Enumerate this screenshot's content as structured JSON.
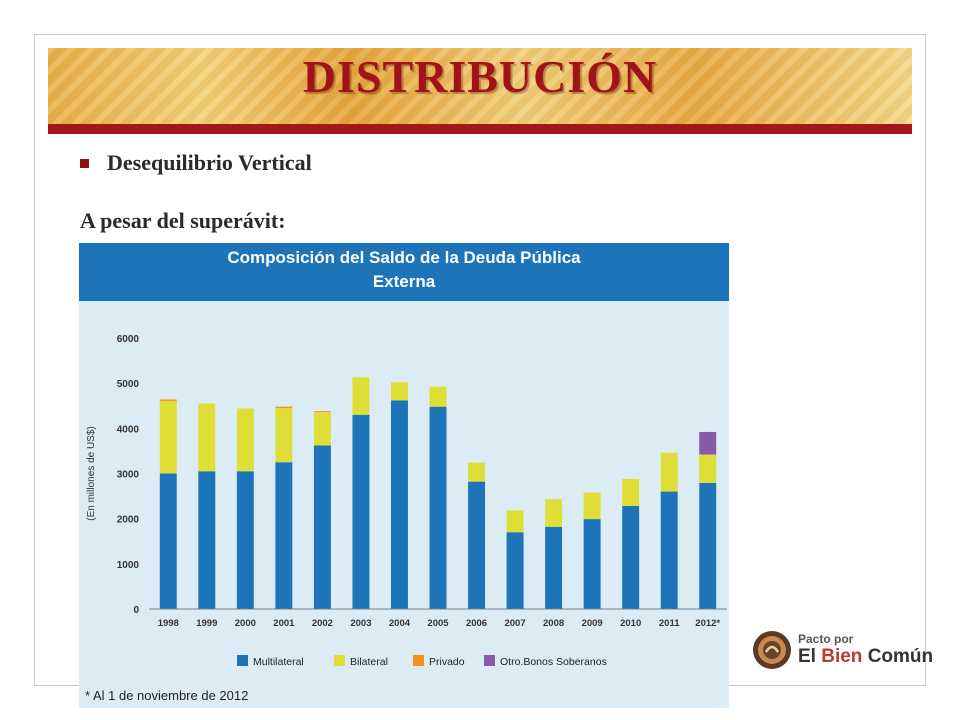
{
  "slide": {
    "title": "DISTRIBUCIÓN",
    "bullet": "Desequilibrio Vertical",
    "subline": "A pesar del superávit:"
  },
  "logo": {
    "line1": "Pacto por",
    "line2_a": "El ",
    "line2_b": "Bien",
    "line2_c": " Común"
  },
  "colors": {
    "title_red": "#a01318",
    "multilateral": "#1d74b9",
    "bilateral": "#dede36",
    "privado": "#f4911e",
    "otros": "#8a5aa8"
  },
  "chart_data": {
    "type": "bar",
    "stacked": true,
    "title": "Composición del Saldo de la Deuda Pública",
    "subtitle": "Externa",
    "ylabel": "(En millones de US$)",
    "xlabel": "",
    "ylim": [
      0,
      6000
    ],
    "yticks": [
      0,
      1000,
      2000,
      3000,
      4000,
      5000,
      6000
    ],
    "grid": false,
    "legend": "bottom",
    "categories": [
      "1998",
      "1999",
      "2000",
      "2001",
      "2002",
      "2003",
      "2004",
      "2005",
      "2006",
      "2007",
      "2008",
      "2009",
      "2010",
      "2011",
      "2012*"
    ],
    "series": [
      {
        "name": "Multilateral",
        "color": "#1d74b9",
        "values": [
          3000,
          3050,
          3050,
          3250,
          3620,
          4300,
          4620,
          4480,
          2820,
          1700,
          1820,
          1990,
          2280,
          2600,
          2790
        ]
      },
      {
        "name": "Bilateral",
        "color": "#dede36",
        "values": [
          1600,
          1500,
          1390,
          1200,
          740,
          830,
          400,
          440,
          420,
          480,
          610,
          590,
          600,
          860,
          630
        ]
      },
      {
        "name": "Privado",
        "color": "#f4911e",
        "values": [
          40,
          0,
          0,
          30,
          20,
          0,
          0,
          0,
          0,
          0,
          0,
          0,
          0,
          0,
          0
        ]
      },
      {
        "name": "Otro.Bonos Soberanos",
        "color": "#8a5aa8",
        "values": [
          0,
          0,
          0,
          0,
          0,
          0,
          0,
          0,
          0,
          0,
          0,
          0,
          0,
          0,
          500
        ]
      }
    ],
    "footnote": "* Al 1 de noviembre de 2012"
  }
}
